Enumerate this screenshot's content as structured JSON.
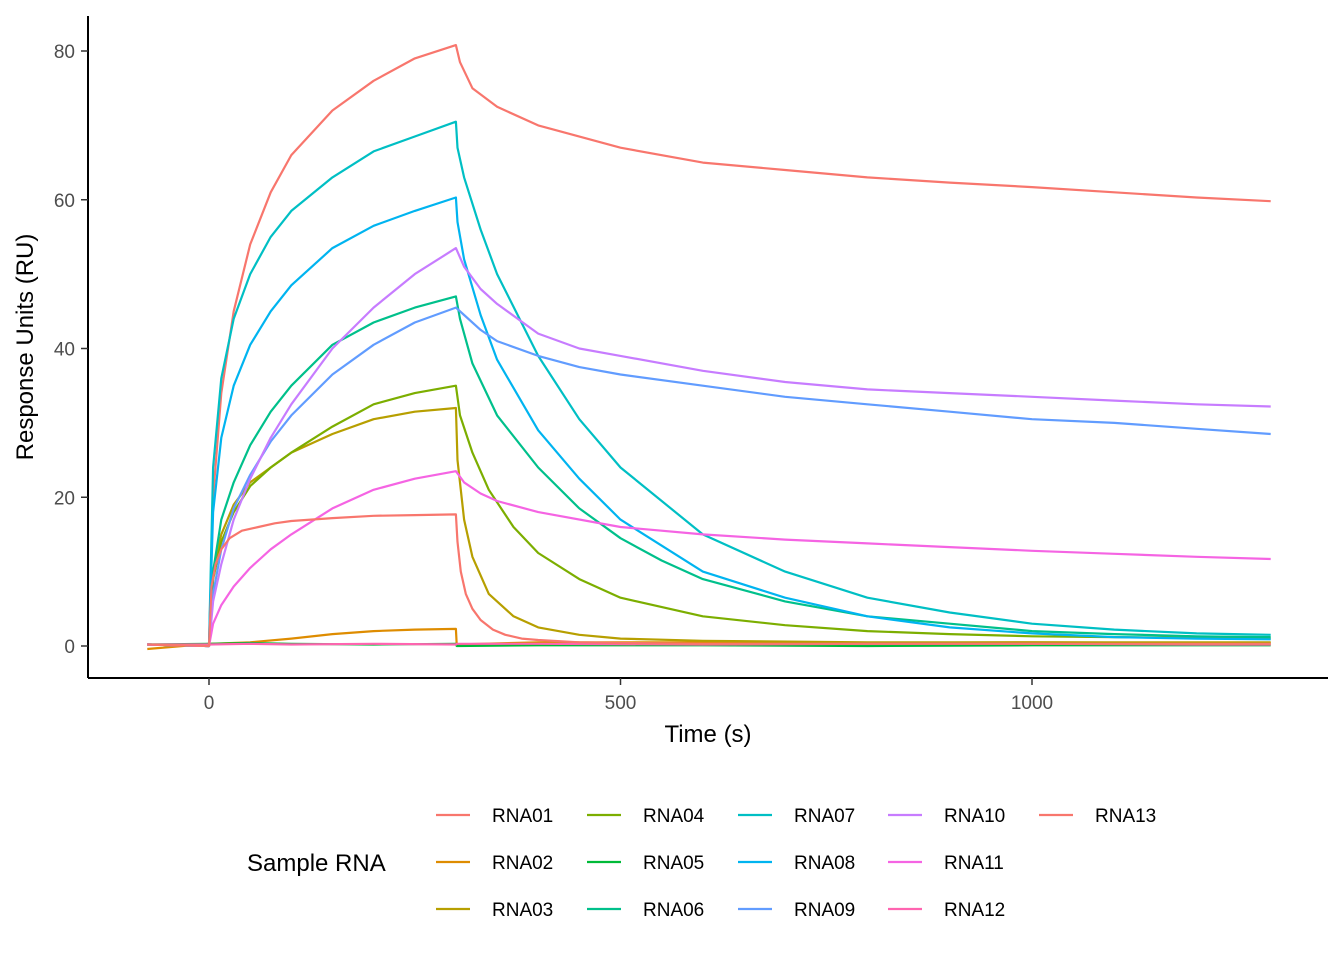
{
  "chart_data": {
    "type": "line",
    "xlabel": "Time (s)",
    "ylabel": "Response Units (RU)",
    "xlim": [
      -75,
      1300
    ],
    "ylim": [
      0,
      80
    ],
    "x_ticks": [
      0,
      500,
      1000
    ],
    "y_ticks": [
      0,
      20,
      40,
      60,
      80
    ],
    "grid": false,
    "legend": {
      "title": "Sample RNA",
      "placement": "bottom",
      "columns": 5
    },
    "series": [
      {
        "name": "RNA01",
        "color": "#F8766D",
        "x": [
          -75,
          0,
          5,
          15,
          30,
          50,
          75,
          100,
          150,
          200,
          250,
          300,
          305,
          320,
          350,
          400,
          500,
          600,
          700,
          800,
          900,
          1000,
          1100,
          1200,
          1290
        ],
        "y": [
          0.2,
          0,
          20,
          34,
          45,
          54,
          61,
          66,
          72,
          76,
          79,
          80.8,
          78.5,
          75,
          72.5,
          70,
          67,
          65,
          64,
          63,
          62.3,
          61.7,
          61,
          60.3,
          59.8
        ]
      },
      {
        "name": "RNA02",
        "color": "#DE8C00",
        "x": [
          -75,
          0,
          50,
          100,
          150,
          200,
          250,
          300,
          301,
          400,
          600,
          800,
          1000,
          1200,
          1290
        ],
        "y": [
          -0.4,
          0.3,
          0.5,
          1.0,
          1.6,
          2.0,
          2.2,
          2.3,
          0.2,
          0.5,
          0.5,
          0.4,
          0.5,
          0.4,
          0.4
        ]
      },
      {
        "name": "RNA03",
        "color": "#B79F00",
        "x": [
          -75,
          0,
          5,
          15,
          30,
          50,
          75,
          100,
          150,
          200,
          250,
          300,
          302,
          310,
          320,
          340,
          370,
          400,
          450,
          500,
          600,
          800,
          1000,
          1290
        ],
        "y": [
          0.2,
          0,
          10,
          15,
          19,
          22,
          24,
          26,
          28.5,
          30.5,
          31.5,
          32,
          25,
          17,
          12,
          7,
          4,
          2.5,
          1.5,
          1,
          0.7,
          0.5,
          0.5,
          0.5
        ]
      },
      {
        "name": "RNA04",
        "color": "#7CAE00",
        "x": [
          -75,
          0,
          5,
          15,
          30,
          50,
          75,
          100,
          150,
          200,
          250,
          300,
          305,
          320,
          340,
          370,
          400,
          450,
          500,
          600,
          700,
          800,
          900,
          1000,
          1100,
          1200,
          1290
        ],
        "y": [
          0.2,
          0,
          9,
          14,
          18,
          21.5,
          24,
          26,
          29.5,
          32.5,
          34,
          35,
          31,
          26,
          21,
          16,
          12.5,
          9,
          6.5,
          4,
          2.8,
          2,
          1.6,
          1.3,
          1.2,
          1.1,
          1.0
        ]
      },
      {
        "name": "RNA05",
        "color": "#00BA38",
        "x": [
          -75,
          0,
          50,
          100,
          200,
          300,
          301,
          400,
          600,
          800,
          1000,
          1200,
          1290
        ],
        "y": [
          0.2,
          0.3,
          0.4,
          0.3,
          0.2,
          0.3,
          0.0,
          0.1,
          0.1,
          0.0,
          0.1,
          0.1,
          0.1
        ]
      },
      {
        "name": "RNA06",
        "color": "#00C08B",
        "x": [
          -75,
          0,
          5,
          15,
          30,
          50,
          75,
          100,
          150,
          200,
          250,
          300,
          305,
          320,
          350,
          400,
          450,
          500,
          550,
          600,
          700,
          800,
          900,
          1000,
          1100,
          1200,
          1290
        ],
        "y": [
          0.2,
          0,
          10,
          17,
          22,
          27,
          31.5,
          35,
          40.5,
          43.5,
          45.5,
          47,
          44,
          38,
          31,
          24,
          18.5,
          14.5,
          11.5,
          9,
          6,
          4,
          3,
          2,
          1.6,
          1.3,
          1.2
        ]
      },
      {
        "name": "RNA07",
        "color": "#00BFC4",
        "x": [
          -75,
          0,
          5,
          15,
          30,
          50,
          75,
          100,
          150,
          200,
          250,
          300,
          302,
          310,
          330,
          350,
          400,
          450,
          500,
          600,
          700,
          800,
          900,
          1000,
          1100,
          1200,
          1290
        ],
        "y": [
          0.2,
          0,
          24,
          36,
          44,
          50,
          55,
          58.5,
          63,
          66.5,
          68.5,
          70.5,
          67,
          63,
          56,
          50,
          39,
          30.5,
          24,
          15,
          10,
          6.5,
          4.5,
          3,
          2.2,
          1.7,
          1.5
        ]
      },
      {
        "name": "RNA08",
        "color": "#00B4F0",
        "x": [
          -75,
          0,
          5,
          15,
          30,
          50,
          75,
          100,
          150,
          200,
          250,
          300,
          302,
          310,
          330,
          350,
          400,
          450,
          500,
          600,
          700,
          800,
          900,
          1000,
          1100,
          1200,
          1290
        ],
        "y": [
          0.2,
          0,
          18,
          28,
          35,
          40.5,
          45,
          48.5,
          53.5,
          56.5,
          58.5,
          60.3,
          57,
          52,
          44.5,
          38.5,
          29,
          22.5,
          17,
          10,
          6.5,
          4,
          2.5,
          1.7,
          1.2,
          1.0,
          0.9
        ]
      },
      {
        "name": "RNA09",
        "color": "#619CFF",
        "x": [
          -75,
          0,
          5,
          15,
          30,
          50,
          75,
          100,
          150,
          200,
          250,
          300,
          310,
          330,
          350,
          400,
          450,
          500,
          600,
          700,
          800,
          900,
          1000,
          1100,
          1200,
          1290
        ],
        "y": [
          0.2,
          0,
          7,
          13,
          18.5,
          23,
          27.5,
          31,
          36.5,
          40.5,
          43.5,
          45.5,
          44.5,
          42.5,
          41,
          39,
          37.5,
          36.5,
          35,
          33.5,
          32.5,
          31.5,
          30.5,
          30,
          29.2,
          28.5
        ]
      },
      {
        "name": "RNA10",
        "color": "#C77CFF",
        "x": [
          -75,
          0,
          5,
          15,
          30,
          50,
          75,
          100,
          150,
          200,
          250,
          300,
          310,
          330,
          350,
          400,
          450,
          500,
          600,
          700,
          800,
          900,
          1000,
          1100,
          1200,
          1290
        ],
        "y": [
          0.2,
          0,
          6,
          11,
          17,
          22.5,
          28,
          32.5,
          40,
          45.5,
          50,
          53.5,
          51,
          48,
          46,
          42,
          40,
          39,
          37,
          35.5,
          34.5,
          34,
          33.5,
          33,
          32.5,
          32.2
        ]
      },
      {
        "name": "RNA11",
        "color": "#F564E3",
        "x": [
          -75,
          0,
          5,
          15,
          30,
          50,
          75,
          100,
          150,
          200,
          250,
          300,
          310,
          330,
          350,
          400,
          500,
          600,
          700,
          800,
          900,
          1000,
          1100,
          1200,
          1290
        ],
        "y": [
          0.2,
          0,
          3,
          5.5,
          8,
          10.5,
          13,
          15,
          18.5,
          21,
          22.5,
          23.5,
          22,
          20.5,
          19.5,
          18,
          16,
          15,
          14.3,
          13.8,
          13.3,
          12.8,
          12.4,
          12,
          11.7
        ]
      },
      {
        "name": "RNA12",
        "color": "#FF64B0",
        "x": [
          -75,
          0,
          50,
          100,
          200,
          300,
          301,
          400,
          600,
          800,
          1000,
          1200,
          1290
        ],
        "y": [
          0.2,
          0.2,
          0.3,
          0.2,
          0.3,
          0.2,
          0.3,
          0.3,
          0.2,
          0.3,
          0.3,
          0.2,
          0.2
        ]
      },
      {
        "name": "RNA13",
        "color": "#F8766D",
        "x": [
          -75,
          0,
          3,
          8,
          15,
          25,
          40,
          60,
          80,
          100,
          150,
          200,
          250,
          300,
          302,
          306,
          312,
          320,
          330,
          345,
          360,
          380,
          400,
          450,
          500,
          600,
          800,
          1000,
          1290
        ],
        "y": [
          0.2,
          0,
          8,
          11,
          13,
          14.5,
          15.5,
          16,
          16.5,
          16.8,
          17.2,
          17.5,
          17.6,
          17.7,
          14,
          10,
          7,
          5,
          3.5,
          2.2,
          1.5,
          1,
          0.8,
          0.5,
          0.4,
          0.3,
          0.3,
          0.3,
          0.3
        ]
      }
    ]
  }
}
